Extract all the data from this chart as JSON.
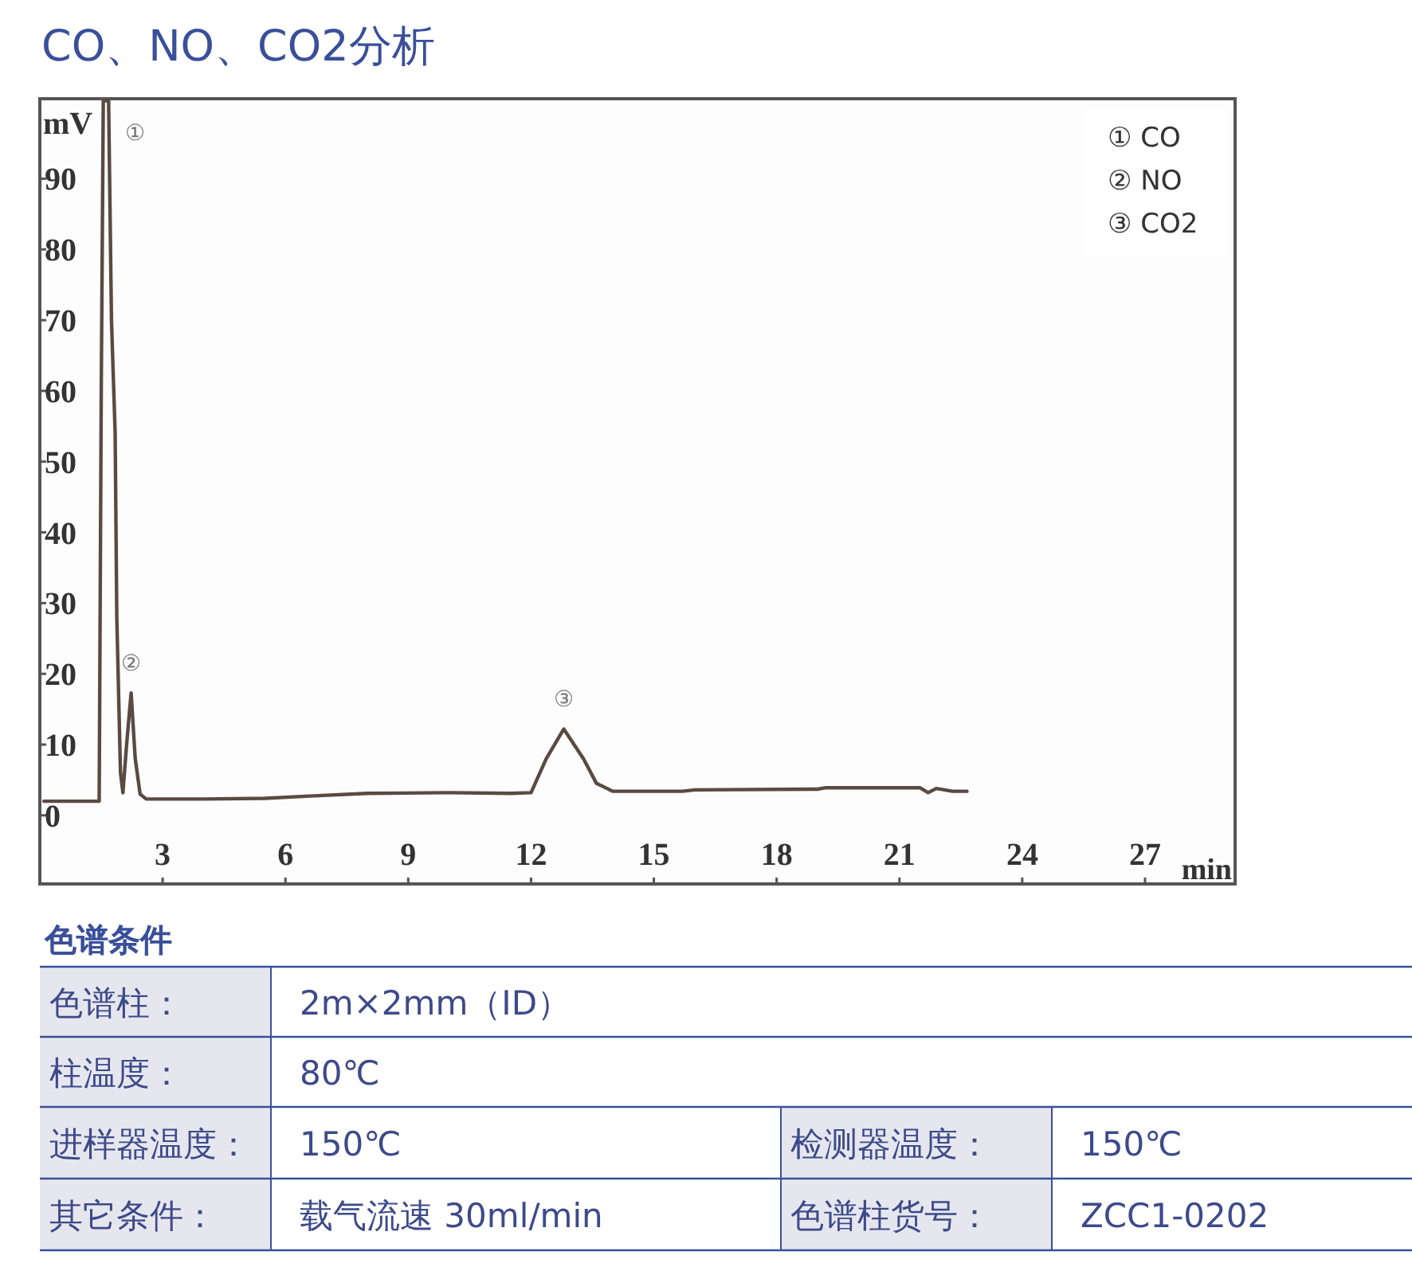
{
  "chart_data": {
    "type": "line",
    "title": "CO、NO、CO2分析",
    "xlabel": "min",
    "ylabel": "mV",
    "xlim": [
      0,
      29.2
    ],
    "ylim": [
      -9.7,
      101.3
    ],
    "xticks": [
      3,
      6,
      9,
      12,
      15,
      18,
      21,
      24,
      27
    ],
    "yticks": [
      0,
      10,
      20,
      30,
      40,
      50,
      60,
      70,
      80,
      90
    ],
    "x": [
      0.1,
      1.45,
      1.5,
      1.55,
      1.68,
      1.75,
      1.84,
      1.88,
      1.97,
      2.03,
      2.12,
      2.23,
      2.33,
      2.45,
      2.6,
      4,
      5.5,
      6.5,
      8,
      10,
      11.5,
      12.0,
      12.37,
      12.8,
      13.28,
      13.6,
      14.0,
      15.7,
      16,
      19,
      19.2,
      21.5,
      21.7,
      21.9,
      22.3,
      22.65
    ],
    "series": [
      {
        "color": "#5a4a42",
        "values": [
          2,
          2,
          60,
          101,
          101,
          70,
          54,
          28,
          6,
          3.2,
          10,
          17.3,
          8,
          3,
          2.3,
          2.3,
          2.4,
          2.7,
          3.1,
          3.2,
          3.1,
          3.2,
          8,
          12.2,
          8,
          4.5,
          3.4,
          3.4,
          3.6,
          3.7,
          3.9,
          3.9,
          3.2,
          3.8,
          3.4,
          3.4
        ]
      }
    ],
    "annotations": [
      {
        "text": "①",
        "x": 1.55,
        "y": 101
      },
      {
        "text": "②",
        "x": 2.23,
        "y": 17.3
      },
      {
        "text": "③",
        "x": 12.8,
        "y": 12.2
      },
      "① CO",
      "② NO",
      "③ CO2",
      "色谱条件",
      "色谱柱：",
      "2m×2mm（ID）",
      "柱温度：",
      "80℃",
      "进样器温度：",
      "150℃",
      "检测器温度：",
      "150℃",
      "其它条件：",
      "载气流速 30ml/min",
      "色谱柱货号：",
      "ZCC1-0202"
    ]
  }
}
